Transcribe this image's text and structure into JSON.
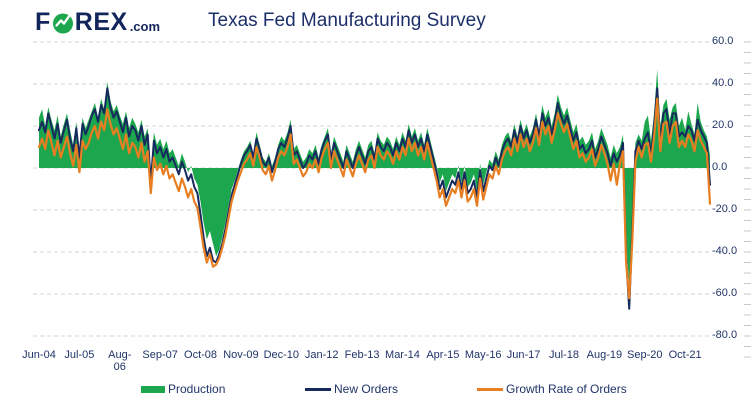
{
  "header": {
    "logo_f": "F",
    "logo_rex": "REX",
    "logo_tld": ".com",
    "title": "Texas Fed Manufacturing Survey"
  },
  "colors": {
    "navy_text": "#203468",
    "logo_navy": "#13265c",
    "logo_green": "#1ca64d",
    "production_green": "#1ca64d",
    "new_orders_navy": "#172a5e",
    "growth_orange": "#e87e22",
    "gridline_gray": "#d6d6d6"
  },
  "chart_data": {
    "type": "line",
    "title": "Texas Fed Manufacturing Survey",
    "x_tick_labels": [
      "Jun-04",
      "Jul-05",
      "Aug-\n06",
      "Sep-07",
      "Oct-08",
      "Nov-09",
      "Dec-10",
      "Jan-12",
      "Feb-13",
      "Mar-14",
      "Apr-15",
      "May-16",
      "Jun-17",
      "Jul-18",
      "Aug-19",
      "Sep-20",
      "Oct-21"
    ],
    "x_tick_interval_months": 13,
    "x_start": "Jun-2004",
    "frequency": "monthly",
    "y_ticks": [
      60,
      40,
      20,
      0,
      -20,
      -40,
      -60,
      -80
    ],
    "y_tick_labels": [
      "60.0",
      "40.0",
      "20.0",
      "0.0",
      "-20.0",
      "-40.0",
      "-60.0",
      "-80.0"
    ],
    "ylim": [
      -80,
      60
    ],
    "grid": "horizontal dashed, major every 20; minor right-edge ticks every 5",
    "legend_position": "bottom",
    "series": [
      {
        "name": "Production",
        "type": "area",
        "color": "#1ca64d",
        "values": [
          24,
          28,
          20,
          29,
          23,
          18,
          25,
          15,
          21,
          26,
          18,
          11,
          22,
          8,
          24,
          19,
          23,
          27,
          31,
          24,
          33,
          28,
          41,
          32,
          27,
          30,
          25,
          21,
          27,
          19,
          24,
          21,
          17,
          23,
          15,
          19,
          -4,
          17,
          11,
          14,
          9,
          13,
          7,
          9,
          5,
          1,
          7,
          3,
          -2,
          1,
          -5,
          -8,
          -16,
          -26,
          -34,
          -30,
          -36,
          -42,
          -39,
          -33,
          -26,
          -18,
          -10,
          -6,
          -1,
          4,
          8,
          10,
          13,
          7,
          17,
          11,
          5,
          3,
          7,
          1,
          5,
          11,
          15,
          13,
          17,
          23,
          9,
          11,
          7,
          3,
          5,
          9,
          7,
          11,
          5,
          11,
          15,
          19,
          7,
          15,
          11,
          7,
          3,
          11,
          7,
          3,
          9,
          13,
          9,
          5,
          11,
          13,
          7,
          17,
          13,
          11,
          15,
          13,
          9,
          15,
          11,
          17,
          13,
          21,
          15,
          19,
          13,
          17,
          11,
          19,
          13,
          7,
          1,
          -7,
          -3,
          -11,
          -7,
          -3,
          -5,
          1,
          -7,
          1,
          -9,
          -7,
          -3,
          -11,
          2,
          -8,
          -2,
          4,
          2,
          8,
          4,
          11,
          15,
          17,
          13,
          21,
          15,
          23,
          17,
          21,
          15,
          19,
          26,
          18,
          30,
          24,
          28,
          20,
          26,
          35,
          29,
          25,
          29,
          23,
          17,
          21,
          13,
          15,
          11,
          13,
          17,
          9,
          13,
          19,
          15,
          11,
          5,
          11,
          7,
          10,
          16,
          -35,
          -56,
          -28,
          12,
          16,
          13,
          22,
          25,
          13,
          26,
          47,
          20,
          30,
          33,
          23,
          29,
          31,
          20,
          24,
          18,
          27,
          21,
          16,
          31,
          22,
          18,
          15,
          6
        ]
      },
      {
        "name": "New Orders",
        "type": "line",
        "color": "#172a5e",
        "values": [
          18,
          22,
          17,
          26,
          20,
          14,
          21,
          12,
          18,
          23,
          14,
          8,
          19,
          5,
          21,
          16,
          20,
          25,
          28,
          22,
          30,
          26,
          38,
          29,
          24,
          27,
          22,
          17,
          24,
          15,
          20,
          18,
          13,
          20,
          11,
          16,
          -7,
          13,
          7,
          10,
          5,
          9,
          3,
          5,
          1,
          -3,
          3,
          -1,
          -6,
          -3,
          -9,
          -12,
          -22,
          -33,
          -42,
          -38,
          -44,
          -45,
          -41,
          -36,
          -29,
          -21,
          -13,
          -8,
          -3,
          2,
          6,
          8,
          11,
          5,
          14,
          9,
          3,
          1,
          5,
          -2,
          3,
          9,
          12,
          10,
          14,
          20,
          6,
          8,
          4,
          0,
          2,
          6,
          4,
          8,
          2,
          9,
          13,
          16,
          4,
          12,
          8,
          4,
          0,
          8,
          4,
          0,
          6,
          10,
          6,
          2,
          8,
          10,
          4,
          14,
          10,
          8,
          12,
          10,
          6,
          12,
          8,
          14,
          10,
          18,
          12,
          16,
          10,
          14,
          8,
          16,
          10,
          4,
          -2,
          -10,
          -6,
          -14,
          -10,
          -6,
          -8,
          -2,
          -10,
          -2,
          -12,
          -10,
          -6,
          -14,
          -1,
          -11,
          -5,
          1,
          -1,
          5,
          1,
          8,
          12,
          14,
          10,
          18,
          12,
          20,
          14,
          18,
          12,
          16,
          23,
          15,
          26,
          20,
          24,
          16,
          22,
          31,
          25,
          21,
          25,
          19,
          13,
          17,
          9,
          11,
          7,
          9,
          13,
          5,
          9,
          15,
          11,
          7,
          1,
          7,
          3,
          6,
          12,
          -42,
          -67,
          -30,
          8,
          13,
          9,
          14,
          17,
          6,
          20,
          38,
          12,
          26,
          28,
          16,
          26,
          26,
          15,
          17,
          15,
          20,
          18,
          13,
          23,
          18,
          15,
          12,
          -8
        ]
      },
      {
        "name": "Growth Rate of Orders",
        "type": "line",
        "color": "#e87e22",
        "values": [
          10,
          14,
          9,
          18,
          12,
          6,
          13,
          5,
          10,
          15,
          7,
          1,
          11,
          -2,
          13,
          9,
          12,
          17,
          20,
          14,
          22,
          18,
          28,
          21,
          16,
          19,
          14,
          9,
          16,
          7,
          12,
          10,
          5,
          12,
          3,
          8,
          -12,
          5,
          -1,
          2,
          -3,
          1,
          -5,
          -3,
          -7,
          -11,
          -5,
          -9,
          -14,
          -10,
          -16,
          -19,
          -28,
          -38,
          -45,
          -41,
          -47,
          -46,
          -43,
          -38,
          -32,
          -24,
          -16,
          -11,
          -6,
          -2,
          2,
          4,
          7,
          1,
          10,
          5,
          -1,
          -3,
          1,
          -6,
          -1,
          5,
          8,
          6,
          10,
          16,
          2,
          4,
          0,
          -4,
          -2,
          2,
          0,
          4,
          -2,
          5,
          9,
          12,
          0,
          8,
          4,
          0,
          -4,
          4,
          0,
          -4,
          2,
          6,
          2,
          -2,
          4,
          6,
          0,
          10,
          6,
          4,
          8,
          6,
          2,
          8,
          4,
          10,
          6,
          14,
          8,
          12,
          6,
          10,
          4,
          12,
          6,
          0,
          -6,
          -14,
          -10,
          -18,
          -14,
          -10,
          -12,
          -6,
          -14,
          -6,
          -16,
          -14,
          -10,
          -18,
          -5,
          -15,
          -9,
          -3,
          -5,
          1,
          -3,
          4,
          8,
          10,
          6,
          14,
          8,
          16,
          10,
          14,
          8,
          12,
          19,
          11,
          22,
          16,
          20,
          12,
          18,
          26,
          21,
          17,
          21,
          15,
          9,
          13,
          5,
          7,
          3,
          5,
          9,
          1,
          5,
          11,
          7,
          2,
          -6,
          2,
          -8,
          2,
          8,
          -45,
          -62,
          -35,
          3,
          10,
          5,
          11,
          12,
          3,
          15,
          33,
          8,
          21,
          22,
          12,
          20,
          22,
          10,
          13,
          10,
          16,
          13,
          8,
          18,
          13,
          10,
          7,
          -17
        ]
      }
    ]
  },
  "legend": {
    "items": [
      "Production",
      "New Orders",
      "Growth Rate of Orders"
    ]
  }
}
